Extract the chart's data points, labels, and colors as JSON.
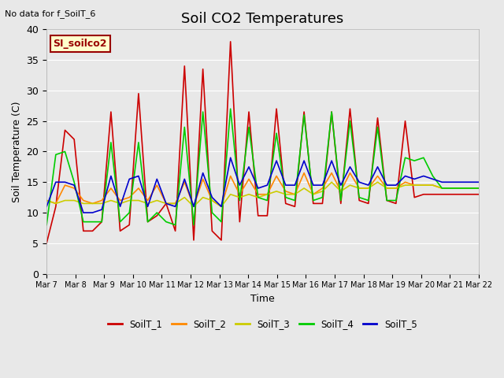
{
  "title": "Soil CO2 Temperatures",
  "xlabel": "Time",
  "ylabel": "Soil Temperature (C)",
  "ylim": [
    0,
    40
  ],
  "top_left_text": "No data for f_SoilT_6",
  "annotation": "SI_soilco2",
  "x_tick_labels": [
    "Mar 7",
    "Mar 8",
    "Mar 9",
    "Mar 10",
    "Mar 11",
    "Mar 12",
    "Mar 13",
    "Mar 14",
    "Mar 15",
    "Mar 16",
    "Mar 17",
    "Mar 18",
    "Mar 19",
    "Mar 20",
    "Mar 21",
    "Mar 22"
  ],
  "soilT1": [
    5.0,
    11.0,
    23.5,
    22.0,
    7.0,
    7.0,
    8.5,
    26.5,
    7.0,
    8.0,
    29.5,
    8.5,
    9.5,
    11.5,
    7.0,
    34.0,
    5.5,
    33.5,
    7.0,
    5.5,
    38.0,
    8.5,
    26.5,
    9.5,
    9.5,
    27.0,
    11.5,
    11.0,
    26.5,
    11.5,
    11.5,
    26.5,
    11.5,
    27.0,
    12.0,
    11.5,
    25.5,
    12.0,
    11.5,
    25.0,
    12.5,
    13.0,
    13.0,
    13.0,
    13.0,
    13.0,
    13.0,
    13.0
  ],
  "soilT2": [
    12.0,
    11.5,
    14.5,
    14.0,
    12.0,
    11.5,
    12.0,
    14.0,
    12.0,
    12.5,
    14.0,
    12.0,
    14.5,
    11.5,
    11.5,
    15.0,
    11.0,
    15.5,
    12.0,
    11.0,
    16.0,
    13.0,
    15.5,
    13.0,
    13.0,
    16.0,
    13.5,
    13.0,
    16.5,
    13.0,
    14.0,
    16.5,
    13.5,
    16.5,
    14.0,
    14.0,
    16.0,
    14.0,
    14.0,
    15.0,
    14.5,
    14.5,
    14.5,
    14.0,
    14.0,
    14.0,
    14.0,
    14.0
  ],
  "soilT3": [
    12.0,
    11.5,
    12.0,
    12.0,
    11.5,
    11.5,
    11.5,
    12.0,
    11.5,
    12.0,
    12.0,
    11.5,
    12.0,
    11.5,
    11.5,
    12.5,
    11.0,
    12.5,
    12.0,
    11.0,
    13.0,
    12.5,
    13.0,
    12.5,
    13.0,
    13.5,
    13.0,
    13.0,
    14.0,
    13.0,
    13.5,
    15.0,
    13.5,
    14.5,
    14.0,
    14.0,
    15.0,
    14.0,
    14.0,
    14.5,
    14.5,
    14.5,
    14.5,
    14.0,
    14.0,
    14.0,
    14.0,
    14.0
  ],
  "soilT4": [
    8.0,
    19.5,
    20.0,
    15.0,
    8.5,
    8.5,
    8.5,
    21.5,
    8.5,
    10.0,
    21.5,
    8.5,
    10.0,
    8.5,
    8.0,
    24.0,
    8.0,
    26.5,
    10.0,
    8.5,
    27.0,
    12.0,
    24.0,
    12.5,
    12.0,
    23.0,
    12.5,
    12.0,
    26.0,
    12.0,
    12.5,
    26.5,
    12.0,
    25.0,
    12.5,
    12.0,
    24.0,
    12.0,
    12.0,
    19.0,
    18.5,
    19.0,
    16.0,
    14.0,
    14.0,
    14.0,
    14.0,
    14.0
  ],
  "soilT5": [
    11.0,
    15.0,
    15.0,
    14.5,
    10.0,
    10.0,
    10.5,
    16.0,
    11.0,
    15.5,
    16.0,
    11.0,
    15.5,
    11.5,
    11.0,
    15.5,
    11.0,
    16.5,
    12.5,
    11.0,
    19.0,
    14.5,
    17.5,
    14.0,
    14.5,
    18.5,
    14.5,
    14.5,
    18.5,
    14.5,
    14.5,
    18.5,
    14.5,
    17.5,
    15.0,
    14.5,
    17.5,
    14.5,
    14.5,
    16.0,
    15.5,
    16.0,
    15.5,
    15.0,
    15.0,
    15.0,
    15.0,
    15.0
  ],
  "colors": [
    "#cc0000",
    "#ff8800",
    "#cccc00",
    "#00cc00",
    "#0000cc"
  ],
  "legend_entries": [
    "SoilT_1",
    "SoilT_2",
    "SoilT_3",
    "SoilT_4",
    "SoilT_5"
  ],
  "background_color": "#e8e8e8",
  "grid_color": "#ffffff",
  "annotation_bg": "#ffffcc",
  "annotation_border": "#990000"
}
